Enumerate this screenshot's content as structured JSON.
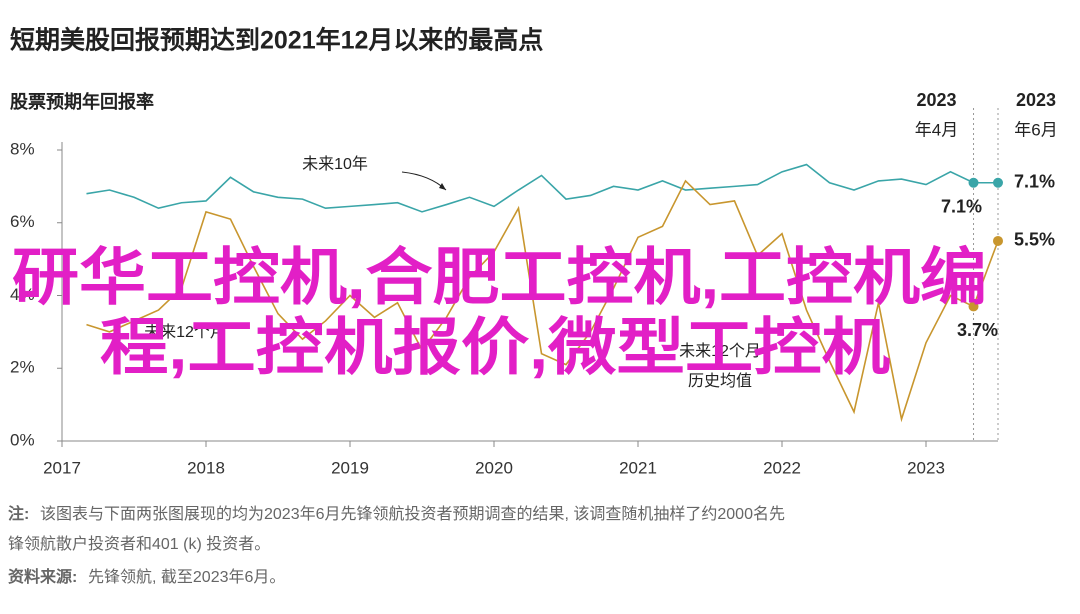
{
  "chart_data": {
    "type": "line",
    "title": "短期美股回报预期达到2021年12月以来的最高点",
    "subtitle": "股票预期年回报率",
    "x": [
      2017.17,
      2017.33,
      2017.5,
      2017.67,
      2017.83,
      2018,
      2018.17,
      2018.33,
      2018.5,
      2018.67,
      2018.83,
      2019,
      2019.17,
      2019.33,
      2019.5,
      2019.67,
      2019.83,
      2020,
      2020.17,
      2020.33,
      2020.5,
      2020.67,
      2020.83,
      2021,
      2021.17,
      2021.33,
      2021.5,
      2021.67,
      2021.83,
      2022,
      2022.17,
      2022.33,
      2022.5,
      2022.67,
      2022.83,
      2023,
      2023.17,
      2023.33,
      2023.5
    ],
    "series": [
      {
        "name": "未来10年",
        "color": "#3aa5a8",
        "values": [
          6.8,
          6.9,
          6.7,
          6.4,
          6.55,
          6.6,
          7.25,
          6.85,
          6.7,
          6.65,
          6.4,
          6.45,
          6.5,
          6.55,
          6.3,
          6.5,
          6.7,
          6.45,
          6.9,
          7.3,
          6.65,
          6.75,
          7.0,
          6.9,
          7.15,
          6.9,
          6.95,
          7.0,
          7.05,
          7.4,
          7.6,
          7.1,
          6.9,
          7.15,
          7.2,
          7.05,
          7.4,
          7.1,
          7.1
        ],
        "point_labels": {
          "37": "7.1%",
          "38": "7.1%"
        }
      },
      {
        "name": "未来12个月",
        "color": "#c8962e",
        "values": [
          3.2,
          3.0,
          3.3,
          3.6,
          4.2,
          6.3,
          6.1,
          4.8,
          3.5,
          2.8,
          3.3,
          4.0,
          3.4,
          3.8,
          2.5,
          3.4,
          4.5,
          5.2,
          6.4,
          2.4,
          2.1,
          3.0,
          4.2,
          5.6,
          5.9,
          7.15,
          6.5,
          6.6,
          5.1,
          5.7,
          3.6,
          2.2,
          0.8,
          3.8,
          0.6,
          2.7,
          4.0,
          3.7,
          5.5
        ],
        "point_labels": {
          "37": "3.7%",
          "38": "5.5%"
        }
      }
    ],
    "average_label": [
      "未来12个月",
      "历史均值"
    ],
    "markers": [
      {
        "x": 2023.33,
        "label": [
          "2023",
          "年4月"
        ]
      },
      {
        "x": 2023.5,
        "label": [
          "2023",
          "年6月"
        ]
      }
    ],
    "xlim": [
      2017,
      2023.5
    ],
    "xticks": [
      2017,
      2018,
      2019,
      2020,
      2021,
      2022,
      2023
    ],
    "ylim": [
      0,
      8
    ],
    "yticks": [
      {
        "value": 0,
        "label": "0%"
      },
      {
        "value": 2,
        "label": "2%"
      },
      {
        "value": 4,
        "label": "4%"
      },
      {
        "value": 6,
        "label": "6%"
      },
      {
        "value": 8,
        "label": "8%"
      }
    ],
    "note": {
      "label": "注:",
      "text": [
        "该图表与下面两张图展现的均为2023年6月先锋领航投资者预期调查的结果, 该调查随机抽样了约2000名先",
        "锋领航散户投资者和401 (k) 投资者。"
      ]
    },
    "source": {
      "label": "资料来源:",
      "text": "先锋领航, 截至2023年6月。"
    },
    "overlay_text": [
      "研华工控机,合肥工控机,工控机编",
      "程,工控机报价,微型工控机"
    ],
    "overlay_color": "#e21fc6"
  }
}
